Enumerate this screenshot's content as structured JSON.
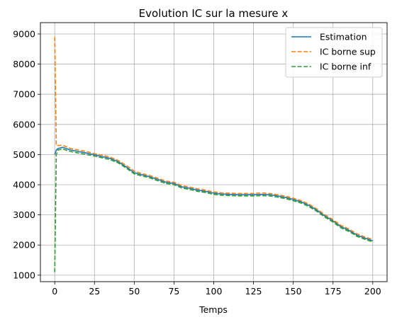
{
  "chart_data": {
    "type": "line",
    "title": "Evolution IC sur la mesure x",
    "xlabel": "Temps",
    "ylabel": "",
    "xlim": [
      -9,
      209
    ],
    "ylim": [
      785,
      9375
    ],
    "xticks": [
      0,
      25,
      50,
      75,
      100,
      125,
      150,
      175,
      200
    ],
    "yticks": [
      1000,
      2000,
      3000,
      4000,
      5000,
      6000,
      7000,
      8000,
      9000
    ],
    "grid": true,
    "legend_position": "top-right",
    "x": [
      0,
      1,
      2,
      5,
      10,
      15,
      20,
      25,
      30,
      35,
      40,
      45,
      50,
      55,
      60,
      65,
      70,
      75,
      80,
      85,
      90,
      95,
      100,
      105,
      110,
      115,
      120,
      125,
      130,
      135,
      140,
      145,
      150,
      155,
      160,
      165,
      170,
      175,
      180,
      185,
      190,
      195,
      200
    ],
    "series": [
      {
        "name": "Estimation",
        "color": "#1f77b4",
        "style": "solid",
        "values": [
          5000,
          5150,
          5200,
          5240,
          5150,
          5100,
          5050,
          4990,
          4930,
          4870,
          4760,
          4590,
          4400,
          4330,
          4260,
          4170,
          4080,
          4040,
          3930,
          3880,
          3820,
          3780,
          3720,
          3690,
          3680,
          3670,
          3670,
          3670,
          3680,
          3670,
          3630,
          3580,
          3510,
          3430,
          3310,
          3150,
          2960,
          2800,
          2610,
          2490,
          2330,
          2230,
          2140
        ]
      },
      {
        "name": "IC borne sup",
        "color": "#ff7f0e",
        "style": "dashed",
        "values": [
          8900,
          5300,
          5300,
          5310,
          5200,
          5150,
          5100,
          5030,
          4980,
          4910,
          4800,
          4640,
          4450,
          4370,
          4300,
          4210,
          4120,
          4080,
          3970,
          3920,
          3860,
          3820,
          3760,
          3730,
          3720,
          3710,
          3710,
          3710,
          3730,
          3710,
          3670,
          3620,
          3550,
          3470,
          3350,
          3190,
          3000,
          2840,
          2650,
          2530,
          2370,
          2270,
          2180
        ]
      },
      {
        "name": "IC borne inf",
        "color": "#2ca02c",
        "style": "dashed",
        "values": [
          1100,
          5000,
          5150,
          5180,
          5100,
          5050,
          5000,
          4950,
          4890,
          4830,
          4720,
          4550,
          4360,
          4290,
          4220,
          4130,
          4040,
          4000,
          3890,
          3840,
          3780,
          3740,
          3680,
          3650,
          3640,
          3630,
          3630,
          3630,
          3640,
          3630,
          3590,
          3540,
          3470,
          3390,
          3270,
          3110,
          2920,
          2760,
          2570,
          2450,
          2290,
          2190,
          2100
        ]
      }
    ]
  }
}
